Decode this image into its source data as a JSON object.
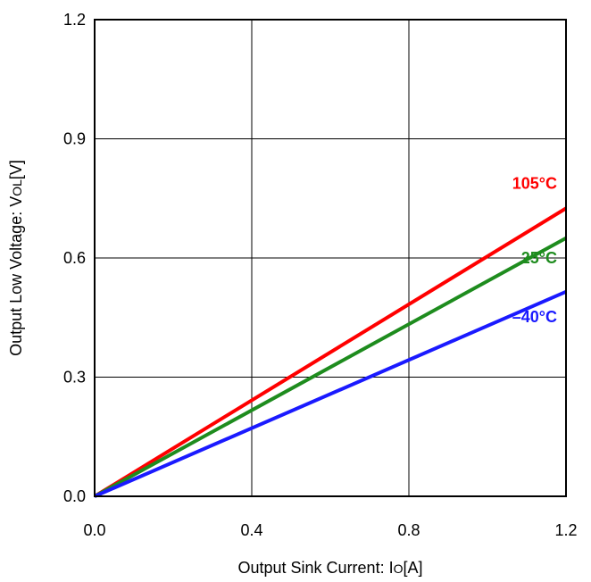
{
  "chart_data": {
    "type": "line",
    "title": "",
    "xlabel": {
      "main": "Output Sink Current: I",
      "sub": "O",
      "tail": "[A]"
    },
    "ylabel": {
      "main": "Output Low Voltage: V",
      "sub": "OL",
      "tail": "[V]"
    },
    "xlim": [
      0,
      1.2
    ],
    "ylim": [
      0,
      1.2
    ],
    "x_ticks": [
      0,
      0.4,
      0.8,
      1.2
    ],
    "x_tick_labels": [
      "0.0",
      "0.4",
      "0.8",
      "1.2"
    ],
    "y_ticks": [
      0,
      0.3,
      0.6,
      0.9,
      1.2
    ],
    "y_tick_labels": [
      "0.0",
      "0.3",
      "0.6",
      "0.9",
      "1.2"
    ],
    "grid": true,
    "legend": "none",
    "series": [
      {
        "name": "105°C",
        "color": "#ff0000",
        "x": [
          0,
          1.2
        ],
        "y": [
          0,
          0.725
        ]
      },
      {
        "name": "25°C",
        "color": "#1e8c1e",
        "x": [
          0,
          1.2
        ],
        "y": [
          0,
          0.65
        ]
      },
      {
        "name": "–40°C",
        "color": "#1a1aff",
        "x": [
          0,
          1.2
        ],
        "y": [
          0,
          0.515
        ]
      }
    ]
  }
}
